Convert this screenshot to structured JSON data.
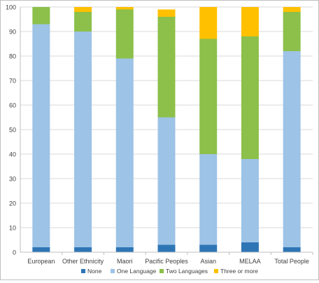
{
  "chart_data": {
    "type": "bar",
    "stacked": true,
    "categories": [
      "European",
      "Other Ethnicity",
      "Maori",
      "Pacific Peoples",
      "Asian",
      "MELAA",
      "Total People"
    ],
    "series": [
      {
        "name": "None",
        "color": "#2e75b6",
        "values": [
          2,
          2,
          2,
          3,
          3,
          4,
          2
        ]
      },
      {
        "name": "One Language",
        "color": "#9dc3e6",
        "values": [
          91,
          88,
          77,
          52,
          37,
          34,
          80
        ]
      },
      {
        "name": "Two Languages",
        "color": "#8cc04a",
        "values": [
          7,
          8,
          20,
          41,
          47,
          50,
          16
        ]
      },
      {
        "name": "Three or more",
        "color": "#ffc000",
        "values": [
          0,
          2,
          1,
          3,
          13,
          12,
          2
        ]
      }
    ],
    "y_ticks": [
      "0",
      "10",
      "20",
      "30",
      "40",
      "50",
      "60",
      "70",
      "80",
      "90",
      "100"
    ],
    "ylim": [
      0,
      100
    ],
    "grid": true,
    "legend_position": "bottom",
    "grid_color": "#d9d9d9",
    "axis_color": "#bfbfbf"
  }
}
